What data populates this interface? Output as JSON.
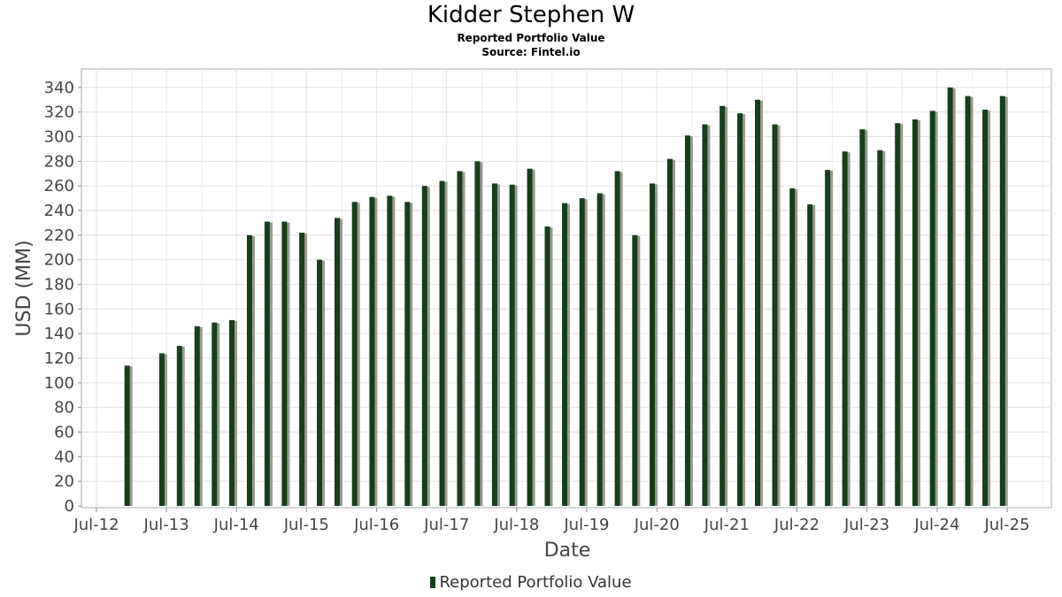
{
  "chart_data": {
    "type": "bar",
    "title": "Kidder Stephen W",
    "subtitle": "Reported Portfolio Value",
    "source": "Source: Fintel.io",
    "xlabel": "Date",
    "ylabel": "USD (MM)",
    "ylim": [
      0,
      355
    ],
    "yticks": [
      0,
      20,
      40,
      60,
      80,
      100,
      120,
      140,
      160,
      180,
      200,
      220,
      240,
      260,
      280,
      300,
      320,
      340
    ],
    "xticks": [
      "Jul-12",
      "Jul-13",
      "Jul-14",
      "Jul-15",
      "Jul-16",
      "Jul-17",
      "Jul-18",
      "Jul-19",
      "Jul-20",
      "Jul-21",
      "Jul-22",
      "Jul-23",
      "Jul-24",
      "Jul-25"
    ],
    "grid": true,
    "legend_position": "bottom",
    "series": [
      {
        "name": "Reported Portfolio Value",
        "color": "#173d1d",
        "shadow_color": "#9a9a92",
        "x": [
          "2012-12-31",
          "2013-06-30",
          "2013-09-30",
          "2013-12-31",
          "2014-03-31",
          "2014-06-30",
          "2014-09-30",
          "2014-12-31",
          "2015-03-31",
          "2015-06-30",
          "2015-09-30",
          "2015-12-31",
          "2016-03-31",
          "2016-06-30",
          "2016-09-30",
          "2016-12-31",
          "2017-03-31",
          "2017-06-30",
          "2017-09-30",
          "2017-12-31",
          "2018-03-31",
          "2018-06-30",
          "2018-09-30",
          "2018-12-31",
          "2019-03-31",
          "2019-06-30",
          "2019-09-30",
          "2019-12-31",
          "2020-03-31",
          "2020-06-30",
          "2020-09-30",
          "2020-12-31",
          "2021-03-31",
          "2021-06-30",
          "2021-09-30",
          "2021-12-31",
          "2022-03-31",
          "2022-06-30",
          "2022-09-30",
          "2022-12-31",
          "2023-03-31",
          "2023-06-30",
          "2023-09-30",
          "2023-12-31",
          "2024-03-31",
          "2024-06-30",
          "2024-09-30",
          "2024-12-31",
          "2025-03-31",
          "2025-06-30"
        ],
        "values": [
          114,
          124,
          130,
          146,
          149,
          151,
          220,
          231,
          231,
          222,
          200,
          234,
          247,
          251,
          252,
          247,
          260,
          264,
          272,
          280,
          262,
          261,
          274,
          227,
          246,
          250,
          254,
          272,
          220,
          262,
          282,
          301,
          310,
          325,
          319,
          330,
          310,
          258,
          245,
          273,
          288,
          306,
          289,
          311,
          314,
          321,
          340,
          333,
          322,
          333
        ]
      }
    ]
  }
}
